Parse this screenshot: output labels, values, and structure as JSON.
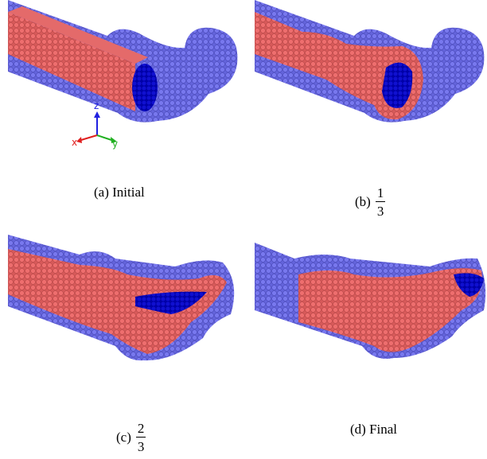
{
  "panels": [
    {
      "label": "(a) Initial"
    },
    {
      "label": "(b)",
      "fraction": {
        "numerator": "1",
        "denominator": "3"
      }
    },
    {
      "label": "(c)",
      "fraction": {
        "numerator": "2",
        "denominator": "3"
      }
    },
    {
      "label": "(d) Final"
    }
  ],
  "axes": {
    "z": "z",
    "x": "x",
    "y": "y"
  }
}
